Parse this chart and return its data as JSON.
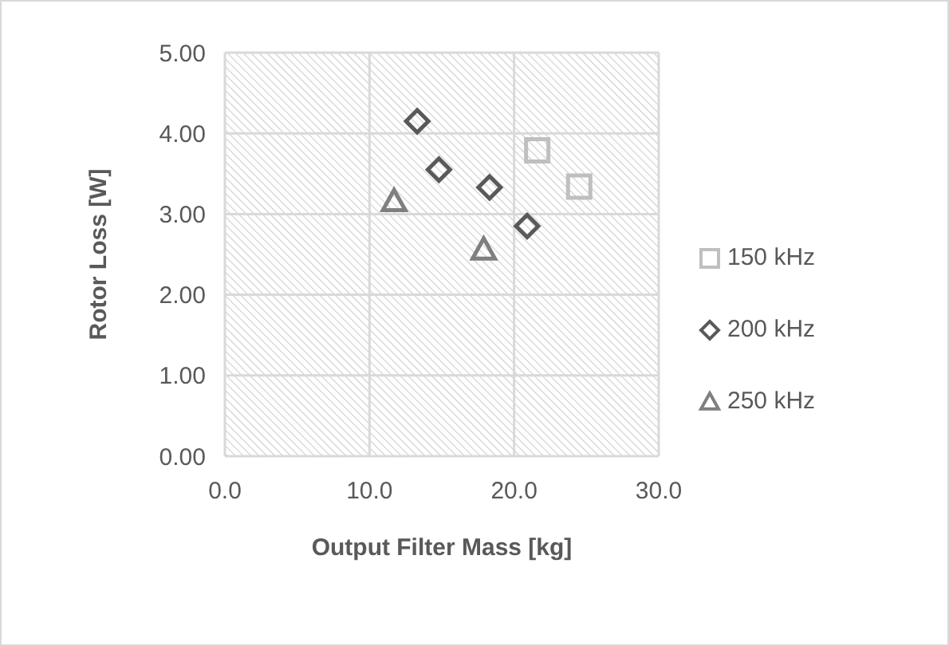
{
  "chart_data": {
    "type": "scatter",
    "xlabel": "Output Filter Mass [kg]",
    "ylabel": "Rotor Loss [W]",
    "xlim": [
      0,
      30
    ],
    "xticks": [
      {
        "value": 0,
        "label": "0.0"
      },
      {
        "value": 10,
        "label": "10.0"
      },
      {
        "value": 20,
        "label": "20.0"
      },
      {
        "value": 30,
        "label": "30.0"
      }
    ],
    "ylim": [
      0,
      5
    ],
    "yticks": [
      {
        "value": 0,
        "label": "0.00"
      },
      {
        "value": 1,
        "label": "1.00"
      },
      {
        "value": 2,
        "label": "2.00"
      },
      {
        "value": 3,
        "label": "3.00"
      },
      {
        "value": 4,
        "label": "4.00"
      },
      {
        "value": 5,
        "label": "5.00"
      }
    ],
    "grid": true,
    "legend": "right",
    "series": [
      {
        "name": "150 kHz",
        "color": "#bfbfbf",
        "marker": "square",
        "x": [
          21.6,
          24.5
        ],
        "values": [
          3.79,
          3.34
        ]
      },
      {
        "name": "200 kHz",
        "color": "#595959",
        "marker": "diamond",
        "x": [
          13.3,
          14.8,
          18.3,
          20.9
        ],
        "values": [
          4.15,
          3.55,
          3.33,
          2.85
        ]
      },
      {
        "name": "250 kHz",
        "color": "#7f7f7f",
        "marker": "triangle",
        "x": [
          11.7,
          17.9
        ],
        "values": [
          3.16,
          2.56
        ]
      }
    ]
  }
}
